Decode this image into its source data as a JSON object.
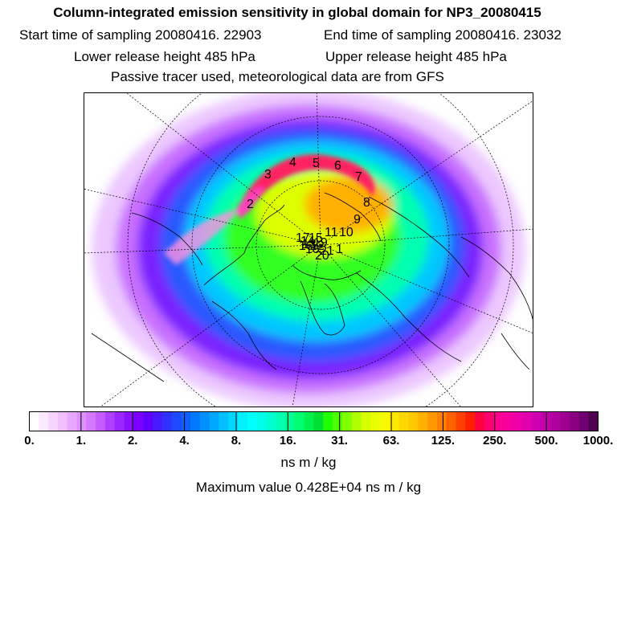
{
  "header": {
    "title": "Column-integrated emission sensitivity in global domain for NP3_20080415",
    "start_label": "Start time of sampling 20080416. 22903",
    "end_label": "End time of sampling 20080416. 23032",
    "lower_label": "Lower release height  485 hPa",
    "upper_label": "Upper release height  485 hPa",
    "tracer_note": "Passive tracer used, meteorological data are from GFS"
  },
  "map": {
    "projection": "north-polar-stereographic",
    "track_labels": [
      "1",
      "2",
      "3",
      "4",
      "5",
      "6",
      "7",
      "8",
      "9",
      "10",
      "11",
      "12",
      "13",
      "14",
      "15",
      "16",
      "17",
      "18",
      "19",
      "20",
      "21"
    ],
    "track_label_texts": [
      "2",
      "3",
      "4",
      "5",
      "6",
      "7",
      "8",
      "9",
      "10",
      "17",
      "12",
      "13",
      "14",
      "15",
      "16",
      "18",
      "19",
      "20",
      "21",
      "1",
      "11"
    ]
  },
  "colorbar": {
    "tick_labels": [
      "0.",
      "1.",
      "2.",
      "4.",
      "8.",
      "16.",
      "31.",
      "63.",
      "125.",
      "250.",
      "500.",
      "1000."
    ],
    "colors": [
      "#ffffff",
      "#fbeaff",
      "#f5d4ff",
      "#efbfff",
      "#e8a8ff",
      "#df90ff",
      "#d478ff",
      "#c35cff",
      "#b040ff",
      "#9b26ff",
      "#8a10ff",
      "#7a00ff",
      "#6000ff",
      "#4818ff",
      "#3030ff",
      "#2048ff",
      "#1060ff",
      "#0078ff",
      "#0090ff",
      "#00a8ff",
      "#00c0ff",
      "#00d8ff",
      "#00f0ff",
      "#00ffff",
      "#00ffea",
      "#00ffd0",
      "#00ffb0",
      "#00ff90",
      "#00ff70",
      "#00f050",
      "#00e030",
      "#20ff00",
      "#50ff00",
      "#80ff00",
      "#b0ff00",
      "#d8ff00",
      "#e8ff00",
      "#f8f800",
      "#ffe800",
      "#ffd800",
      "#ffc800",
      "#ffb000",
      "#ff9800",
      "#ff8000",
      "#ff6000",
      "#ff4000",
      "#ff2000",
      "#ff0040",
      "#ff0070",
      "#ff0090",
      "#f800a0",
      "#ee00a8",
      "#e000b0",
      "#d000b0",
      "#c000a8",
      "#b000a0",
      "#a00090",
      "#880080",
      "#700070",
      "#500050"
    ],
    "units": "ns m / kg"
  },
  "footer": {
    "max_value": "Maximum value  0.428E+04 ns m / kg"
  }
}
